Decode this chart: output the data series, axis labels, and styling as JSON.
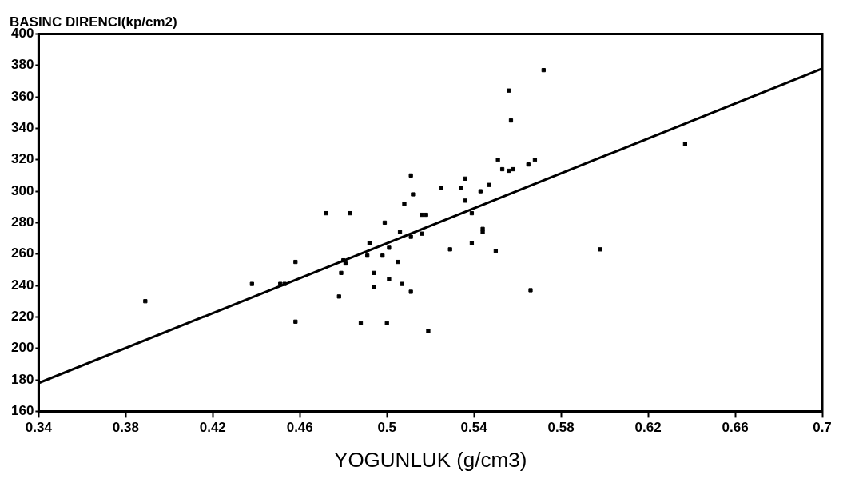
{
  "chart_data": {
    "type": "scatter",
    "ylabel": "BASINC DIRENCI(kp/cm2)",
    "xlabel": "YOGUNLUK (g/cm3)",
    "xlim": [
      0.34,
      0.7
    ],
    "xticks": [
      0.34,
      0.38,
      0.42,
      0.46,
      0.5,
      0.54,
      0.58,
      0.62,
      0.66,
      0.7
    ],
    "ylim": [
      160,
      400
    ],
    "yticks": [
      160,
      180,
      200,
      220,
      240,
      260,
      280,
      300,
      320,
      340,
      360,
      380,
      400
    ],
    "grid": false,
    "legend": false,
    "series": [
      {
        "color": "#000000",
        "marker": "square",
        "x": [
          0.389,
          0.438,
          0.451,
          0.453,
          0.458,
          0.458,
          0.472,
          0.483,
          0.48,
          0.481,
          0.479,
          0.478,
          0.488,
          0.492,
          0.491,
          0.494,
          0.494,
          0.499,
          0.498,
          0.501,
          0.5,
          0.501,
          0.505,
          0.507,
          0.506,
          0.508,
          0.511,
          0.512,
          0.511,
          0.511,
          0.516,
          0.518,
          0.516,
          0.519,
          0.525,
          0.529,
          0.534,
          0.536,
          0.536,
          0.539,
          0.539,
          0.543,
          0.544,
          0.544,
          0.547,
          0.55,
          0.551,
          0.553,
          0.556,
          0.558,
          0.556,
          0.557,
          0.565,
          0.568,
          0.566,
          0.572,
          0.598,
          0.637
        ],
        "values": [
          230,
          241,
          241,
          241,
          255,
          217,
          286,
          286,
          256,
          254,
          248,
          233,
          216,
          267,
          259,
          248,
          239,
          280,
          259,
          264,
          216,
          244,
          255,
          241,
          274,
          292,
          310,
          298,
          271,
          236,
          285,
          285,
          273,
          211,
          302,
          263,
          302,
          308,
          294,
          286,
          267,
          300,
          276,
          274,
          304,
          262,
          320,
          314,
          313,
          314,
          364,
          345,
          317,
          320,
          237,
          377,
          263,
          330
        ]
      },
      {
        "type": "line",
        "marker": "none",
        "color": "#000000",
        "x": [
          0.34,
          0.7
        ],
        "values": [
          178,
          378
        ]
      }
    ]
  }
}
